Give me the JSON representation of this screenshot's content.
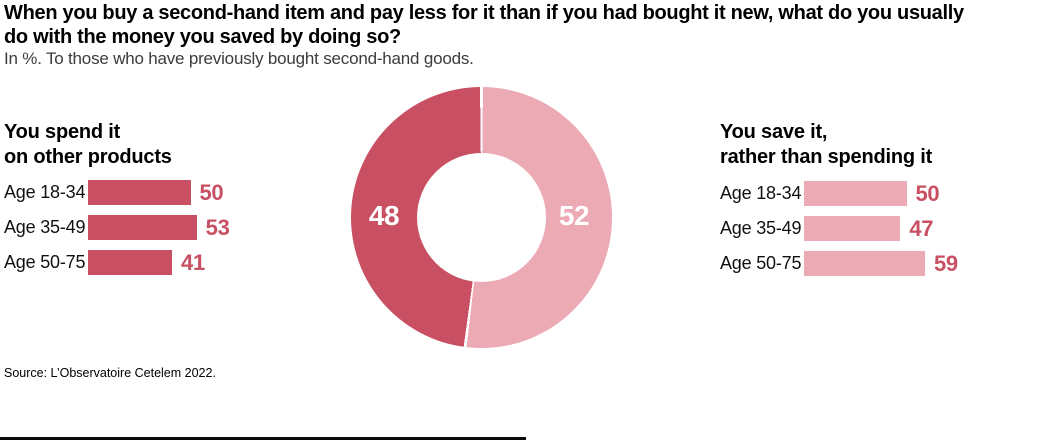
{
  "header": {
    "title_lines": [
      "When you buy a second-hand item and pay less for it than if you had bought it new, what do you usually",
      "do with the money you saved by doing so?"
    ],
    "subtitle": "In %. To those who have previously bought second-hand goods."
  },
  "colors": {
    "dark_pink": "#c85062",
    "light_pink": "#ebaab4",
    "value_label": "#c85062",
    "title_black": "#000000",
    "subtitle_gray": "#3c3c3c",
    "donut_label_white": "#ffffff"
  },
  "chart_data": [
    {
      "type": "pie",
      "donut": true,
      "start_angle": "top",
      "direction": "clockwise",
      "labels": [
        "You save it, rather than spending it",
        "You spend it on other products"
      ],
      "values": [
        52,
        48
      ],
      "colors": [
        "#ebaab4",
        "#c85062"
      ],
      "value_labels_inside": true
    },
    {
      "type": "bar",
      "orientation": "horizontal",
      "title": [
        "You spend it",
        "on other products"
      ],
      "categories": [
        "Age 18-34",
        "Age 35-49",
        "Age 50-75"
      ],
      "values": [
        50,
        53,
        41
      ],
      "bar_color": "#c85062",
      "value_label_color": "#c85062",
      "xlim": [
        0,
        60
      ]
    },
    {
      "type": "bar",
      "orientation": "horizontal",
      "title": [
        "You save it,",
        "rather than spending it"
      ],
      "categories": [
        "Age 18-34",
        "Age 35-49",
        "Age 50-75"
      ],
      "values": [
        50,
        47,
        59
      ],
      "bar_color": "#ebaab4",
      "value_label_color": "#c85062",
      "xlim": [
        0,
        60
      ]
    }
  ],
  "source": "Source: L’Observatoire Cetelem 2022."
}
